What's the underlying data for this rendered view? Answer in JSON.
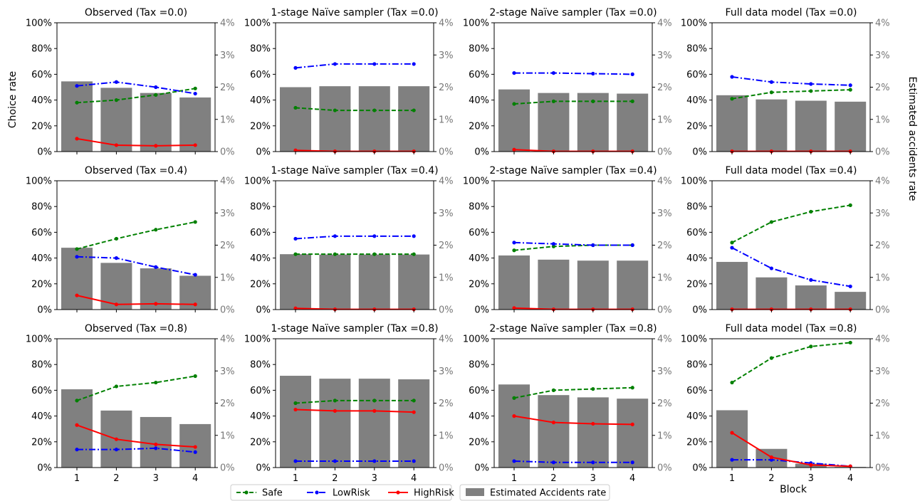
{
  "figure": {
    "ylabel_left": "Choice rate",
    "ylabel_right": "Estimated accidents rate",
    "xlabel": "Block"
  },
  "legend": {
    "placement": "bottom-center",
    "entries": [
      {
        "label": "Safe",
        "color": "#008000",
        "style": "dashed"
      },
      {
        "label": "LowRisk",
        "color": "#0000ff",
        "style": "dashdot"
      },
      {
        "label": "HighRisk",
        "color": "#ff0000",
        "style": "solid"
      },
      {
        "label": "Estimated Accidents rate",
        "color": "#808080",
        "style": "bar"
      }
    ]
  },
  "chart_data": [
    {
      "type": "bar+line",
      "title": "Observed (Tax =0.0)",
      "categories": [
        "1",
        "2",
        "3",
        "4"
      ],
      "ylim": [
        0,
        1
      ],
      "ylim_right": [
        0,
        0.04
      ],
      "bars": [
        0.0218,
        0.0198,
        0.0182,
        0.0168
      ],
      "series": [
        {
          "name": "Safe",
          "values": [
            0.38,
            0.4,
            0.44,
            0.49
          ]
        },
        {
          "name": "LowRisk",
          "values": [
            0.51,
            0.54,
            0.5,
            0.45
          ]
        },
        {
          "name": "HighRisk",
          "values": [
            0.1,
            0.05,
            0.045,
            0.05
          ]
        }
      ]
    },
    {
      "type": "bar+line",
      "title": "1-stage Naïve sampler (Tax =0.0)",
      "categories": [
        "1",
        "2",
        "3",
        "4"
      ],
      "ylim": [
        0,
        1
      ],
      "ylim_right": [
        0,
        0.04
      ],
      "bars": [
        0.02,
        0.0203,
        0.0203,
        0.0203
      ],
      "series": [
        {
          "name": "Safe",
          "values": [
            0.34,
            0.32,
            0.32,
            0.32
          ]
        },
        {
          "name": "LowRisk",
          "values": [
            0.65,
            0.68,
            0.68,
            0.68
          ]
        },
        {
          "name": "HighRisk",
          "values": [
            0.01,
            0.002,
            0.002,
            0.002
          ]
        }
      ]
    },
    {
      "type": "bar+line",
      "title": "2-stage Naïve sampler (Tax =0.0)",
      "categories": [
        "1",
        "2",
        "3",
        "4"
      ],
      "ylim": [
        0,
        1
      ],
      "ylim_right": [
        0,
        0.04
      ],
      "bars": [
        0.0193,
        0.0182,
        0.0182,
        0.018
      ],
      "series": [
        {
          "name": "Safe",
          "values": [
            0.37,
            0.39,
            0.39,
            0.39
          ]
        },
        {
          "name": "LowRisk",
          "values": [
            0.61,
            0.61,
            0.605,
            0.6
          ]
        },
        {
          "name": "HighRisk",
          "values": [
            0.015,
            0.002,
            0.002,
            0.002
          ]
        }
      ]
    },
    {
      "type": "bar+line",
      "title": "Full data model (Tax =0.0)",
      "categories": [
        "1",
        "2",
        "3",
        "4"
      ],
      "ylim": [
        0,
        1
      ],
      "ylim_right": [
        0,
        0.04
      ],
      "bars": [
        0.0175,
        0.0162,
        0.0158,
        0.0155
      ],
      "series": [
        {
          "name": "Safe",
          "values": [
            0.41,
            0.46,
            0.47,
            0.48
          ]
        },
        {
          "name": "LowRisk",
          "values": [
            0.58,
            0.54,
            0.525,
            0.515
          ]
        },
        {
          "name": "HighRisk",
          "values": [
            0.002,
            0.002,
            0.002,
            0.002
          ]
        }
      ]
    },
    {
      "type": "bar+line",
      "title": "Observed (Tax =0.4)",
      "categories": [
        "1",
        "2",
        "3",
        "4"
      ],
      "ylim": [
        0,
        1
      ],
      "ylim_right": [
        0,
        0.04
      ],
      "bars": [
        0.0192,
        0.0145,
        0.0128,
        0.0105
      ],
      "series": [
        {
          "name": "Safe",
          "values": [
            0.47,
            0.55,
            0.62,
            0.68
          ]
        },
        {
          "name": "LowRisk",
          "values": [
            0.41,
            0.4,
            0.33,
            0.27
          ]
        },
        {
          "name": "HighRisk",
          "values": [
            0.11,
            0.04,
            0.045,
            0.04
          ]
        }
      ]
    },
    {
      "type": "bar+line",
      "title": "1-stage Naïve sampler (Tax =0.4)",
      "categories": [
        "1",
        "2",
        "3",
        "4"
      ],
      "ylim": [
        0,
        1
      ],
      "ylim_right": [
        0,
        0.04
      ],
      "bars": [
        0.0172,
        0.0171,
        0.0171,
        0.0171
      ],
      "series": [
        {
          "name": "Safe",
          "values": [
            0.43,
            0.43,
            0.43,
            0.43
          ]
        },
        {
          "name": "LowRisk",
          "values": [
            0.55,
            0.57,
            0.57,
            0.57
          ]
        },
        {
          "name": "HighRisk",
          "values": [
            0.01,
            0.002,
            0.002,
            0.002
          ]
        }
      ]
    },
    {
      "type": "bar+line",
      "title": "2-stage Naïve sampler (Tax =0.4)",
      "categories": [
        "1",
        "2",
        "3",
        "4"
      ],
      "ylim": [
        0,
        1
      ],
      "ylim_right": [
        0,
        0.04
      ],
      "bars": [
        0.0168,
        0.0155,
        0.0152,
        0.0152
      ],
      "series": [
        {
          "name": "Safe",
          "values": [
            0.46,
            0.49,
            0.5,
            0.5
          ]
        },
        {
          "name": "LowRisk",
          "values": [
            0.52,
            0.51,
            0.5,
            0.5
          ]
        },
        {
          "name": "HighRisk",
          "values": [
            0.012,
            0.002,
            0.002,
            0.002
          ]
        }
      ]
    },
    {
      "type": "bar+line",
      "title": "Full data model (Tax =0.4)",
      "categories": [
        "1",
        "2",
        "3",
        "4"
      ],
      "ylim": [
        0,
        1
      ],
      "ylim_right": [
        0,
        0.04
      ],
      "bars": [
        0.0148,
        0.01,
        0.0075,
        0.0055
      ],
      "series": [
        {
          "name": "Safe",
          "values": [
            0.52,
            0.68,
            0.76,
            0.81
          ]
        },
        {
          "name": "LowRisk",
          "values": [
            0.48,
            0.32,
            0.23,
            0.18
          ]
        },
        {
          "name": "HighRisk",
          "values": [
            0.002,
            0.002,
            0.002,
            0.002
          ]
        }
      ]
    },
    {
      "type": "bar+line",
      "title": "Observed (Tax =0.8)",
      "categories": [
        "1",
        "2",
        "3",
        "4"
      ],
      "ylim": [
        0,
        1
      ],
      "ylim_right": [
        0,
        0.04
      ],
      "bars": [
        0.0243,
        0.0177,
        0.0157,
        0.0135
      ],
      "series": [
        {
          "name": "Safe",
          "values": [
            0.52,
            0.63,
            0.66,
            0.71
          ]
        },
        {
          "name": "LowRisk",
          "values": [
            0.14,
            0.14,
            0.15,
            0.12
          ]
        },
        {
          "name": "HighRisk",
          "values": [
            0.33,
            0.22,
            0.18,
            0.16
          ]
        }
      ]
    },
    {
      "type": "bar+line",
      "title": "1-stage Naïve sampler (Tax =0.8)",
      "categories": [
        "1",
        "2",
        "3",
        "4"
      ],
      "ylim": [
        0,
        1
      ],
      "ylim_right": [
        0,
        0.04
      ],
      "bars": [
        0.0285,
        0.0276,
        0.0276,
        0.0274
      ],
      "series": [
        {
          "name": "Safe",
          "values": [
            0.5,
            0.52,
            0.52,
            0.52
          ]
        },
        {
          "name": "LowRisk",
          "values": [
            0.05,
            0.05,
            0.05,
            0.05
          ]
        },
        {
          "name": "HighRisk",
          "values": [
            0.45,
            0.44,
            0.44,
            0.43
          ]
        }
      ]
    },
    {
      "type": "bar+line",
      "title": "2-stage Naïve sampler (Tax =0.8)",
      "categories": [
        "1",
        "2",
        "3",
        "4"
      ],
      "ylim": [
        0,
        1
      ],
      "ylim_right": [
        0,
        0.04
      ],
      "bars": [
        0.0258,
        0.0225,
        0.0218,
        0.0214
      ],
      "series": [
        {
          "name": "Safe",
          "values": [
            0.54,
            0.6,
            0.61,
            0.62
          ]
        },
        {
          "name": "LowRisk",
          "values": [
            0.05,
            0.04,
            0.04,
            0.04
          ]
        },
        {
          "name": "HighRisk",
          "values": [
            0.4,
            0.35,
            0.34,
            0.335
          ]
        }
      ]
    },
    {
      "type": "bar+line",
      "title": "Full data model (Tax =0.8)",
      "categories": [
        "1",
        "2",
        "3",
        "4"
      ],
      "ylim": [
        0,
        1
      ],
      "ylim_right": [
        0,
        0.04
      ],
      "bars": [
        0.0178,
        0.0058,
        0.0012,
        0.0002
      ],
      "series": [
        {
          "name": "Safe",
          "values": [
            0.66,
            0.85,
            0.94,
            0.97
          ]
        },
        {
          "name": "LowRisk",
          "values": [
            0.06,
            0.06,
            0.035,
            0.01
          ]
        },
        {
          "name": "HighRisk",
          "values": [
            0.27,
            0.08,
            0.02,
            0.01
          ]
        }
      ]
    }
  ]
}
